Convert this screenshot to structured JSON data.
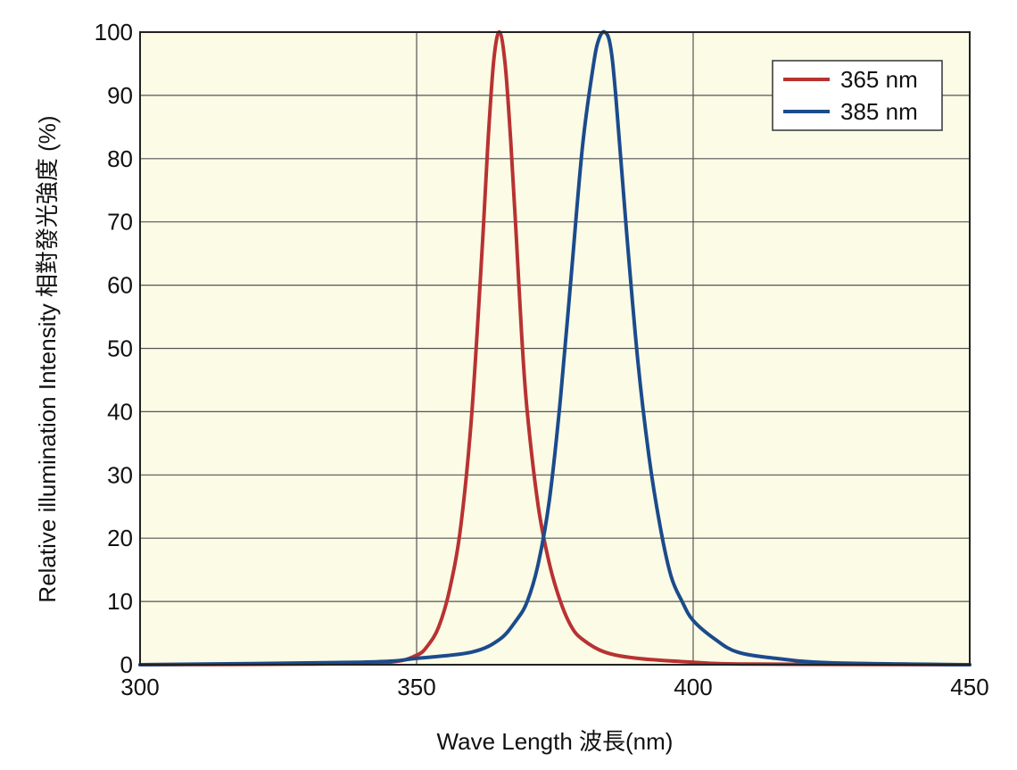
{
  "chart_data": {
    "type": "line",
    "title": "",
    "xlabel": "Wave Length 波長(nm)",
    "ylabel": "Relative illumination Intensity 相對發光強度 (%)",
    "xlim": [
      300,
      450
    ],
    "ylim": [
      0,
      100
    ],
    "xticks": [
      "300",
      "350",
      "400",
      "450"
    ],
    "yticks": [
      "0",
      "10",
      "20",
      "30",
      "40",
      "50",
      "60",
      "70",
      "80",
      "90",
      "100"
    ],
    "grid": true,
    "legend_position": "top-right",
    "background_color": "#fbfbe6",
    "series": [
      {
        "name": "365 nm",
        "color": "#b83232",
        "x": [
          300,
          330,
          345,
          350,
          352,
          354,
          356,
          358,
          360,
          362,
          363,
          364,
          365,
          366,
          367,
          368,
          369,
          370,
          372,
          374,
          376,
          378,
          380,
          384,
          390,
          400,
          410,
          450
        ],
        "y": [
          0,
          0.1,
          0.4,
          1.5,
          3,
          6,
          12,
          22,
          40,
          68,
          84,
          96,
          100,
          95,
          83,
          68,
          52,
          40,
          25,
          16,
          10,
          6,
          4,
          2,
          1,
          0.4,
          0.1,
          0
        ]
      },
      {
        "name": "385 nm",
        "color": "#1b4b8c",
        "x": [
          300,
          340,
          350,
          360,
          365,
          368,
          370,
          372,
          374,
          376,
          378,
          380,
          382,
          383,
          384,
          385,
          386,
          388,
          390,
          392,
          394,
          396,
          398,
          400,
          404,
          408,
          415,
          425,
          450
        ],
        "y": [
          0,
          0.4,
          1,
          2,
          4,
          7,
          10,
          16,
          26,
          42,
          62,
          82,
          95,
          99,
          100,
          98,
          90,
          68,
          48,
          33,
          22,
          14,
          10,
          7,
          4,
          2,
          1,
          0.3,
          0
        ]
      }
    ]
  }
}
